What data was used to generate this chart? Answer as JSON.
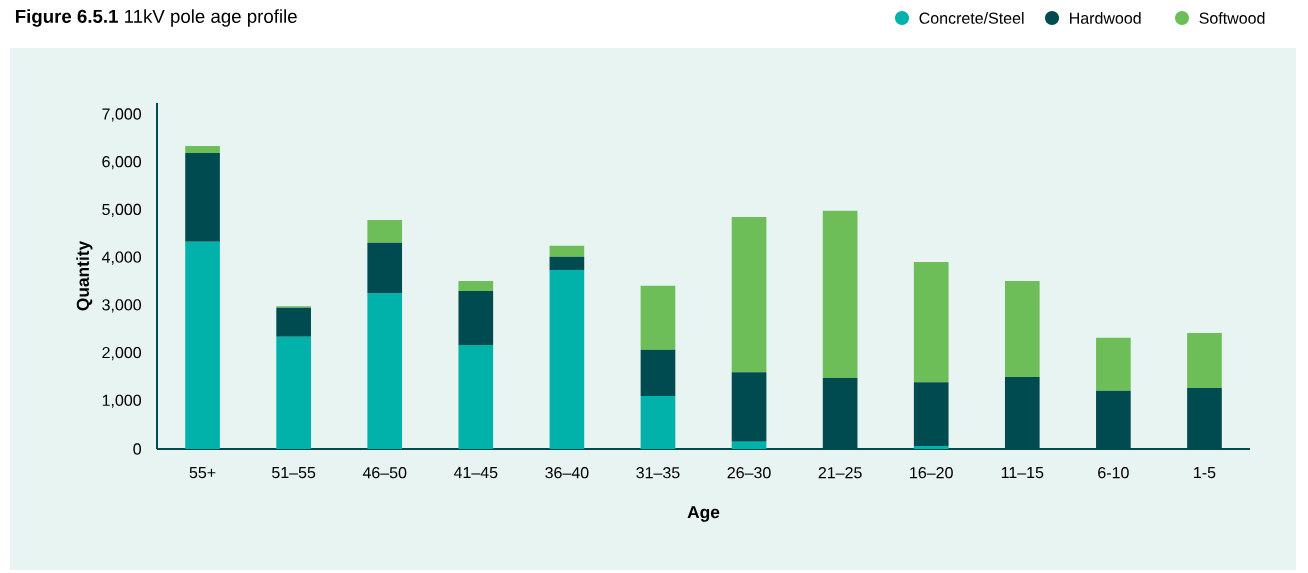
{
  "chart_data": {
    "type": "bar",
    "title": "**Figure 6.5.1** 11kV pole age profile",
    "xlabel": "Age",
    "ylabel": "Quantity",
    "categories": [
      "55+",
      "51–55",
      "46–50",
      "41–45",
      "36–40",
      "31–35",
      "26–30",
      "21–25",
      "16–20",
      "11–15",
      "6-10",
      "1-5"
    ],
    "stacked": true,
    "legend": "top right",
    "ylim": [
      0,
      7250
    ],
    "yticks": [
      0,
      {
        "value": 1000,
        "label": "1,000"
      },
      {
        "value": 2000,
        "label": "2,000"
      },
      {
        "value": 3000,
        "label": "3,000"
      },
      {
        "value": 4000,
        "label": "4,000"
      },
      {
        "value": 5000,
        "label": "5,000"
      },
      {
        "value": 6000,
        "label": "6,000"
      },
      {
        "value": 7000,
        "label": "7,000"
      }
    ],
    "series": [
      {
        "name": "Concrete/Steel",
        "color": "#00b2a9",
        "values": [
          4340,
          2350,
          3270,
          2180,
          3750,
          1110,
          150,
          0,
          60,
          0,
          0,
          0
        ]
      },
      {
        "name": "Hardwood",
        "color": "#004b50",
        "values": [
          1860,
          610,
          1050,
          1130,
          280,
          970,
          1460,
          1490,
          1340,
          1510,
          1220,
          1280
        ]
      },
      {
        "name": "Softwood",
        "color": "#6dbe58",
        "values": [
          150,
          30,
          480,
          210,
          230,
          1340,
          3250,
          3500,
          2520,
          2010,
          1110,
          1150
        ]
      }
    ]
  }
}
